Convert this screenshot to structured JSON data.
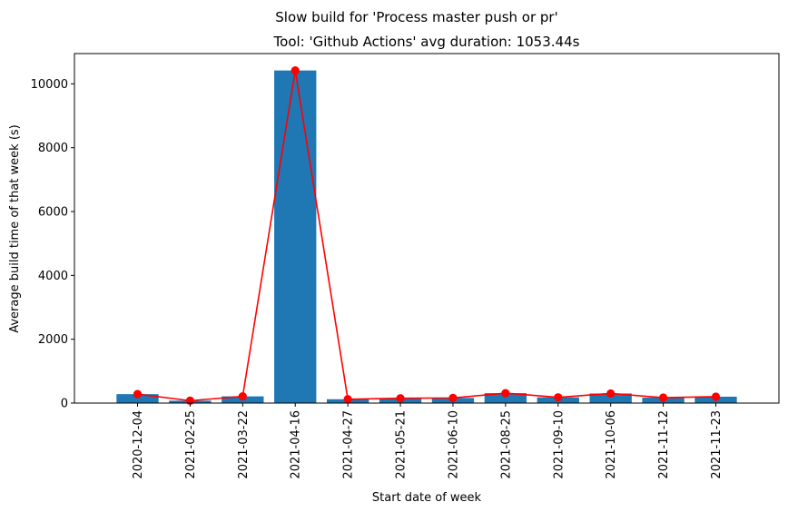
{
  "chart_data": {
    "type": "bar",
    "suptitle": "Slow build for 'Process master push or pr'",
    "title": "Tool: 'Github Actions' avg duration: 1053.44s",
    "xlabel": "Start date of week",
    "ylabel": "Average build time of that week (s)",
    "categories": [
      "2020-12-04",
      "2021-02-25",
      "2021-03-22",
      "2021-04-16",
      "2021-04-27",
      "2021-05-21",
      "2021-06-10",
      "2021-08-25",
      "2021-09-10",
      "2021-10-06",
      "2021-11-12",
      "2021-11-23"
    ],
    "series": [
      {
        "type": "bar",
        "values": [
          280,
          75,
          210,
          10420,
          120,
          150,
          160,
          310,
          180,
          300,
          170,
          200
        ],
        "color": "#1f77b4"
      },
      {
        "type": "line",
        "values": [
          280,
          75,
          210,
          10420,
          120,
          150,
          160,
          310,
          180,
          300,
          170,
          200
        ],
        "color": "#ff0000",
        "marker": "circle"
      }
    ],
    "ylim": [
      0,
      10950
    ],
    "yticks": [
      0,
      2000,
      4000,
      6000,
      8000,
      10000
    ],
    "ytick_labels": [
      "0",
      "2000",
      "4000",
      "6000",
      "8000",
      "10000"
    ],
    "grid": false,
    "legend": "none"
  }
}
